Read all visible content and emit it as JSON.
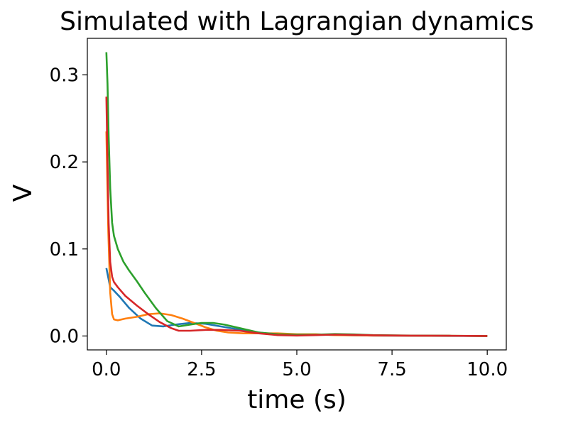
{
  "chart_data": {
    "type": "line",
    "title": "Simulated with Lagrangian dynamics",
    "xlabel": "time (s)",
    "ylabel": "V",
    "xlim": [
      -0.5,
      10.5
    ],
    "ylim": [
      -0.016,
      0.342
    ],
    "xticks": [
      0.0,
      2.5,
      5.0,
      7.5,
      10.0
    ],
    "xtick_labels": [
      "0.0",
      "2.5",
      "5.0",
      "7.5",
      "10.0"
    ],
    "yticks": [
      0.0,
      0.1,
      0.2,
      0.3
    ],
    "ytick_labels": [
      "0.0",
      "0.1",
      "0.2",
      "0.3"
    ],
    "grid": false,
    "legend": "none",
    "series": [
      {
        "color": "#1f77b4",
        "x": [
          0,
          0.1,
          0.2,
          0.35,
          0.6,
          0.9,
          1.2,
          1.5,
          1.8,
          2.2,
          2.6,
          3.0,
          3.4,
          3.8,
          4.2,
          4.6,
          5.0,
          5.5,
          6.0,
          6.5,
          7.0,
          7.5,
          8.0,
          9.0,
          10.0
        ],
        "y": [
          0.078,
          0.056,
          0.052,
          0.045,
          0.032,
          0.02,
          0.012,
          0.011,
          0.013,
          0.015,
          0.014,
          0.011,
          0.008,
          0.005,
          0.003,
          0.002,
          0.001,
          0.0015,
          0.0012,
          0.0008,
          0.0005,
          0.0003,
          0.0002,
          0.0001,
          0.0
        ]
      },
      {
        "color": "#ff7f0e",
        "x": [
          0,
          0.05,
          0.1,
          0.15,
          0.2,
          0.3,
          0.5,
          0.8,
          1.1,
          1.4,
          1.7,
          2.0,
          2.3,
          2.6,
          2.9,
          3.2,
          3.6,
          4.0,
          4.5,
          5.0,
          5.5,
          6.0,
          7.0,
          8.0,
          9.0,
          10.0
        ],
        "y": [
          0.235,
          0.12,
          0.05,
          0.025,
          0.019,
          0.018,
          0.02,
          0.022,
          0.025,
          0.026,
          0.024,
          0.02,
          0.015,
          0.01,
          0.006,
          0.004,
          0.003,
          0.003,
          0.003,
          0.002,
          0.002,
          0.001,
          0.0005,
          0.0003,
          0.0002,
          0.0
        ]
      },
      {
        "color": "#2ca02c",
        "x": [
          0,
          0.03,
          0.06,
          0.1,
          0.15,
          0.2,
          0.3,
          0.45,
          0.6,
          0.8,
          1.0,
          1.3,
          1.6,
          1.9,
          2.2,
          2.5,
          2.8,
          3.1,
          3.5,
          4.0,
          4.5,
          5.0,
          5.5,
          6.0,
          6.5,
          7.0,
          8.0,
          9.0,
          10.0
        ],
        "y": [
          0.326,
          0.29,
          0.23,
          0.17,
          0.13,
          0.115,
          0.1,
          0.085,
          0.075,
          0.063,
          0.05,
          0.032,
          0.017,
          0.011,
          0.013,
          0.015,
          0.015,
          0.013,
          0.009,
          0.004,
          0.002,
          0.0015,
          0.0015,
          0.0022,
          0.0018,
          0.001,
          0.0005,
          0.0002,
          0.0
        ]
      },
      {
        "color": "#d62728",
        "x": [
          0,
          0.03,
          0.06,
          0.1,
          0.15,
          0.2,
          0.3,
          0.5,
          0.8,
          1.1,
          1.4,
          1.7,
          1.9,
          2.2,
          2.6,
          3.0,
          3.5,
          4.0,
          4.5,
          5.0,
          5.5,
          6.0,
          6.5,
          7.0,
          8.0,
          9.0,
          10.0
        ],
        "y": [
          0.275,
          0.2,
          0.13,
          0.085,
          0.068,
          0.062,
          0.056,
          0.046,
          0.035,
          0.025,
          0.016,
          0.009,
          0.006,
          0.006,
          0.007,
          0.007,
          0.006,
          0.003,
          0.001,
          0.0005,
          0.001,
          0.0015,
          0.0012,
          0.0008,
          0.0004,
          0.0002,
          0.0
        ]
      }
    ]
  }
}
